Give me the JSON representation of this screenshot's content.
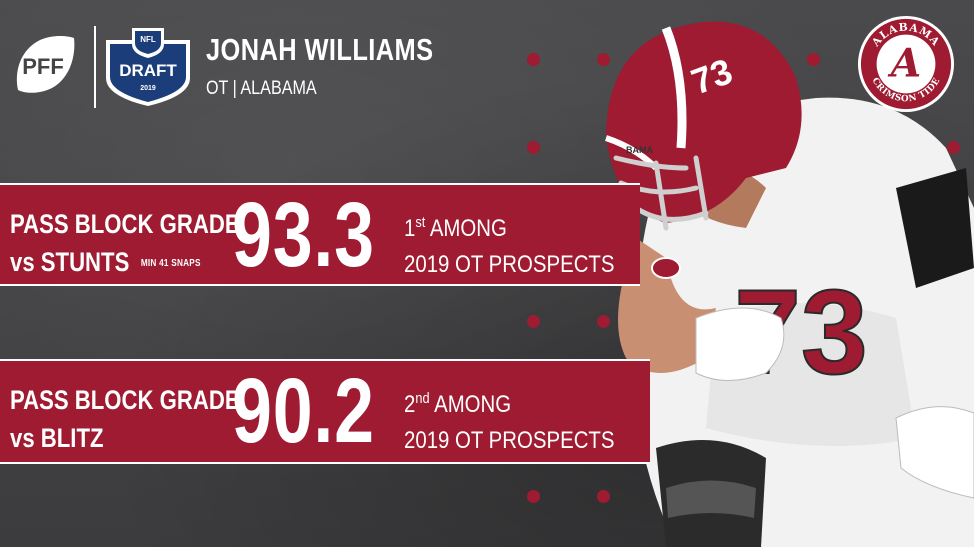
{
  "brand": {
    "pff": "PFF",
    "nfl": "NFL",
    "draft": "DRAFT",
    "year": "2019",
    "colors": {
      "crimson": "#9e1b32",
      "background": "#444446",
      "navy": "#1b3e7a",
      "white": "#ffffff"
    }
  },
  "player": {
    "name": "JONAH WILLIAMS",
    "position_school": "OT | ALABAMA",
    "jersey_number": "73",
    "helmet_text": "BAMA",
    "jersey_front": "73"
  },
  "school_logo": {
    "top_text": "ALABAMA",
    "bottom_text": "CRIMSON TIDE",
    "letter": "A"
  },
  "metrics": [
    {
      "label_line1": "PASS BLOCK GRADE",
      "label_line2": "vs STUNTS",
      "note": "MIN 41 SNAPS",
      "value": "93.3",
      "rank_num": "1",
      "rank_suffix": "st",
      "rank_text": "AMONG",
      "rank_group": "2019 OT PROSPECTS"
    },
    {
      "label_line1": "PASS BLOCK GRADE",
      "label_line2": "vs BLITZ",
      "note": "",
      "value": "90.2",
      "rank_num": "2",
      "rank_suffix": "nd",
      "rank_text": "AMONG",
      "rank_group": "2019 OT PROSPECTS"
    }
  ]
}
